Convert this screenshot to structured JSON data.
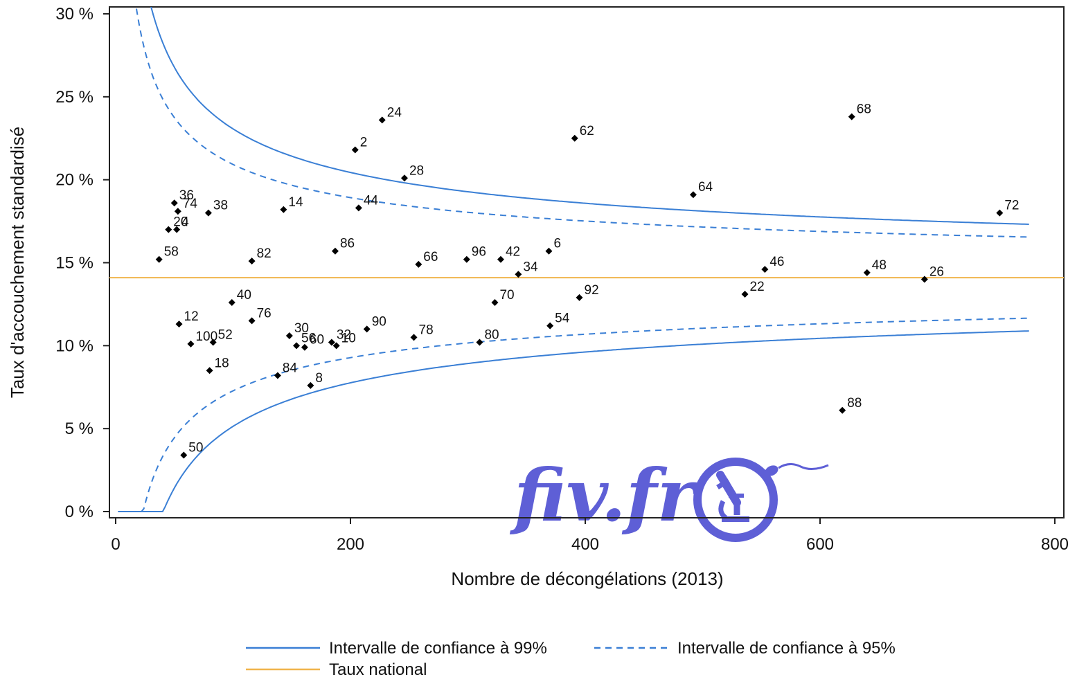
{
  "chart_data": {
    "type": "scatter",
    "title": "",
    "xlabel": "Nombre de décongélations (2013)",
    "ylabel": "Taux d'accouchement standardisé",
    "xlim": [
      0,
      800
    ],
    "ylim": [
      0,
      30
    ],
    "x_ticks": [
      0,
      200,
      400,
      600,
      800
    ],
    "x_tick_labels": [
      "0",
      "200",
      "400",
      "600",
      "800"
    ],
    "y_ticks": [
      0,
      5,
      10,
      15,
      20,
      25,
      30
    ],
    "y_tick_labels": [
      "0 %",
      "5 %",
      "10 %",
      "15 %",
      "20 %",
      "25 %",
      "30 %"
    ],
    "grid": false,
    "national_rate": 14.1,
    "points": [
      {
        "label": "24",
        "x": 227,
        "y": 23.6
      },
      {
        "label": "2",
        "x": 204,
        "y": 21.8
      },
      {
        "label": "28",
        "x": 246,
        "y": 20.1
      },
      {
        "label": "62",
        "x": 391,
        "y": 22.5
      },
      {
        "label": "68",
        "x": 627,
        "y": 23.8
      },
      {
        "label": "64",
        "x": 492,
        "y": 19.1
      },
      {
        "label": "72",
        "x": 753,
        "y": 18.0
      },
      {
        "label": "36",
        "x": 50,
        "y": 18.6
      },
      {
        "label": "74",
        "x": 53,
        "y": 18.1
      },
      {
        "label": "38",
        "x": 79,
        "y": 18.0
      },
      {
        "label": "14",
        "x": 143,
        "y": 18.2
      },
      {
        "label": "44",
        "x": 207,
        "y": 18.3
      },
      {
        "label": "20",
        "x": 45,
        "y": 17.0
      },
      {
        "label": "4",
        "x": 52,
        "y": 17.0
      },
      {
        "label": "58",
        "x": 37,
        "y": 15.2
      },
      {
        "label": "82",
        "x": 116,
        "y": 15.1
      },
      {
        "label": "86",
        "x": 187,
        "y": 15.7
      },
      {
        "label": "66",
        "x": 258,
        "y": 14.9
      },
      {
        "label": "96",
        "x": 299,
        "y": 15.2
      },
      {
        "label": "42",
        "x": 328,
        "y": 15.2
      },
      {
        "label": "6",
        "x": 369,
        "y": 15.7
      },
      {
        "label": "34",
        "x": 343,
        "y": 14.3
      },
      {
        "label": "46",
        "x": 553,
        "y": 14.6
      },
      {
        "label": "48",
        "x": 640,
        "y": 14.4
      },
      {
        "label": "26",
        "x": 689,
        "y": 14.0
      },
      {
        "label": "22",
        "x": 536,
        "y": 13.1
      },
      {
        "label": "92",
        "x": 395,
        "y": 12.9
      },
      {
        "label": "70",
        "x": 323,
        "y": 12.6
      },
      {
        "label": "40",
        "x": 99,
        "y": 12.6
      },
      {
        "label": "76",
        "x": 116,
        "y": 11.5
      },
      {
        "label": "12",
        "x": 54,
        "y": 11.3
      },
      {
        "label": "54",
        "x": 370,
        "y": 11.2
      },
      {
        "label": "90",
        "x": 214,
        "y": 11.0
      },
      {
        "label": "30",
        "x": 148,
        "y": 10.6
      },
      {
        "label": "78",
        "x": 254,
        "y": 10.5
      },
      {
        "label": "100",
        "x": 64,
        "y": 10.1
      },
      {
        "label": "52",
        "x": 83,
        "y": 10.2
      },
      {
        "label": "32",
        "x": 184,
        "y": 10.2
      },
      {
        "label": "80",
        "x": 310,
        "y": 10.2
      },
      {
        "label": "56",
        "x": 154,
        "y": 10.0
      },
      {
        "label": "60",
        "x": 161,
        "y": 9.9
      },
      {
        "label": "10",
        "x": 188,
        "y": 10.0
      },
      {
        "label": "18",
        "x": 80,
        "y": 8.5
      },
      {
        "label": "84",
        "x": 138,
        "y": 8.2
      },
      {
        "label": "8",
        "x": 166,
        "y": 7.6
      },
      {
        "label": "88",
        "x": 619,
        "y": 6.1
      },
      {
        "label": "50",
        "x": 58,
        "y": 3.4
      }
    ],
    "series": [
      {
        "name": "Intervalle de confiance à 99%",
        "style": "solid",
        "color": "#3a7fd5",
        "z": 2.576
      },
      {
        "name": "Intervalle de confiance à 95%",
        "style": "dashed",
        "color": "#3a7fd5",
        "z": 1.96
      },
      {
        "name": "Taux national",
        "style": "solid",
        "color": "#f0b44c"
      }
    ],
    "legend_placement": "bottom"
  },
  "watermark": {
    "text": "fiv.fr",
    "color": "#5e5fd6",
    "icon": "microscope-sperm-icon"
  }
}
